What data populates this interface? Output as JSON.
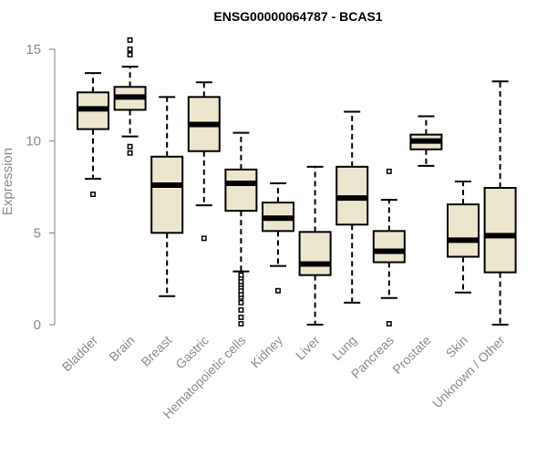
{
  "chart_data": {
    "type": "box",
    "title": "ENSG00000064787 - BCAS1",
    "ylabel": "Expression",
    "ylim": [
      0,
      15
    ],
    "yticks": [
      0,
      5,
      10,
      15
    ],
    "colors": {
      "box_fill": "#ede6cf",
      "stroke": "#000000",
      "axis": "#808080",
      "text": "#8a8a8a"
    },
    "categories": [
      "Bladder",
      "Brain",
      "Breast",
      "Gastric",
      "Hematopoietic cells",
      "Kidney",
      "Liver",
      "Lung",
      "Pancreas",
      "Prostate",
      "Skin",
      "Unknown / Other"
    ],
    "boxes": [
      {
        "min": 7.95,
        "q1": 10.65,
        "median": 11.75,
        "q3": 12.65,
        "max": 13.7,
        "outliers": [
          7.1
        ]
      },
      {
        "min": 10.25,
        "q1": 11.7,
        "median": 12.4,
        "q3": 12.95,
        "max": 14.05,
        "outliers": [
          9.35,
          9.7,
          14.7,
          15.0,
          15.5
        ]
      },
      {
        "min": 1.55,
        "q1": 5.0,
        "median": 7.6,
        "q3": 9.15,
        "max": 12.4,
        "outliers": []
      },
      {
        "min": 6.5,
        "q1": 9.45,
        "median": 10.9,
        "q3": 12.4,
        "max": 13.2,
        "outliers": [
          4.7
        ]
      },
      {
        "min": 2.9,
        "q1": 6.2,
        "median": 7.7,
        "q3": 8.45,
        "max": 10.45,
        "outliers": [
          0.05,
          0.4,
          0.8,
          1.2,
          1.5,
          1.65,
          1.85,
          2.05,
          2.2,
          2.35,
          2.55,
          2.7
        ]
      },
      {
        "min": 3.2,
        "q1": 5.1,
        "median": 5.8,
        "q3": 6.65,
        "max": 7.7,
        "outliers": [
          1.85
        ]
      },
      {
        "min": 0.0,
        "q1": 2.7,
        "median": 3.3,
        "q3": 5.05,
        "max": 8.6,
        "outliers": []
      },
      {
        "min": 1.2,
        "q1": 5.45,
        "median": 6.9,
        "q3": 8.6,
        "max": 11.6,
        "outliers": []
      },
      {
        "min": 1.45,
        "q1": 3.4,
        "median": 4.0,
        "q3": 5.1,
        "max": 6.8,
        "outliers": [
          0.05,
          8.35
        ]
      },
      {
        "min": 8.65,
        "q1": 9.55,
        "median": 10.0,
        "q3": 10.35,
        "max": 11.35,
        "outliers": []
      },
      {
        "min": 1.75,
        "q1": 3.7,
        "median": 4.6,
        "q3": 6.55,
        "max": 7.8,
        "outliers": []
      },
      {
        "min": 0.0,
        "q1": 2.85,
        "median": 4.85,
        "q3": 7.45,
        "max": 13.25,
        "outliers": []
      }
    ]
  }
}
